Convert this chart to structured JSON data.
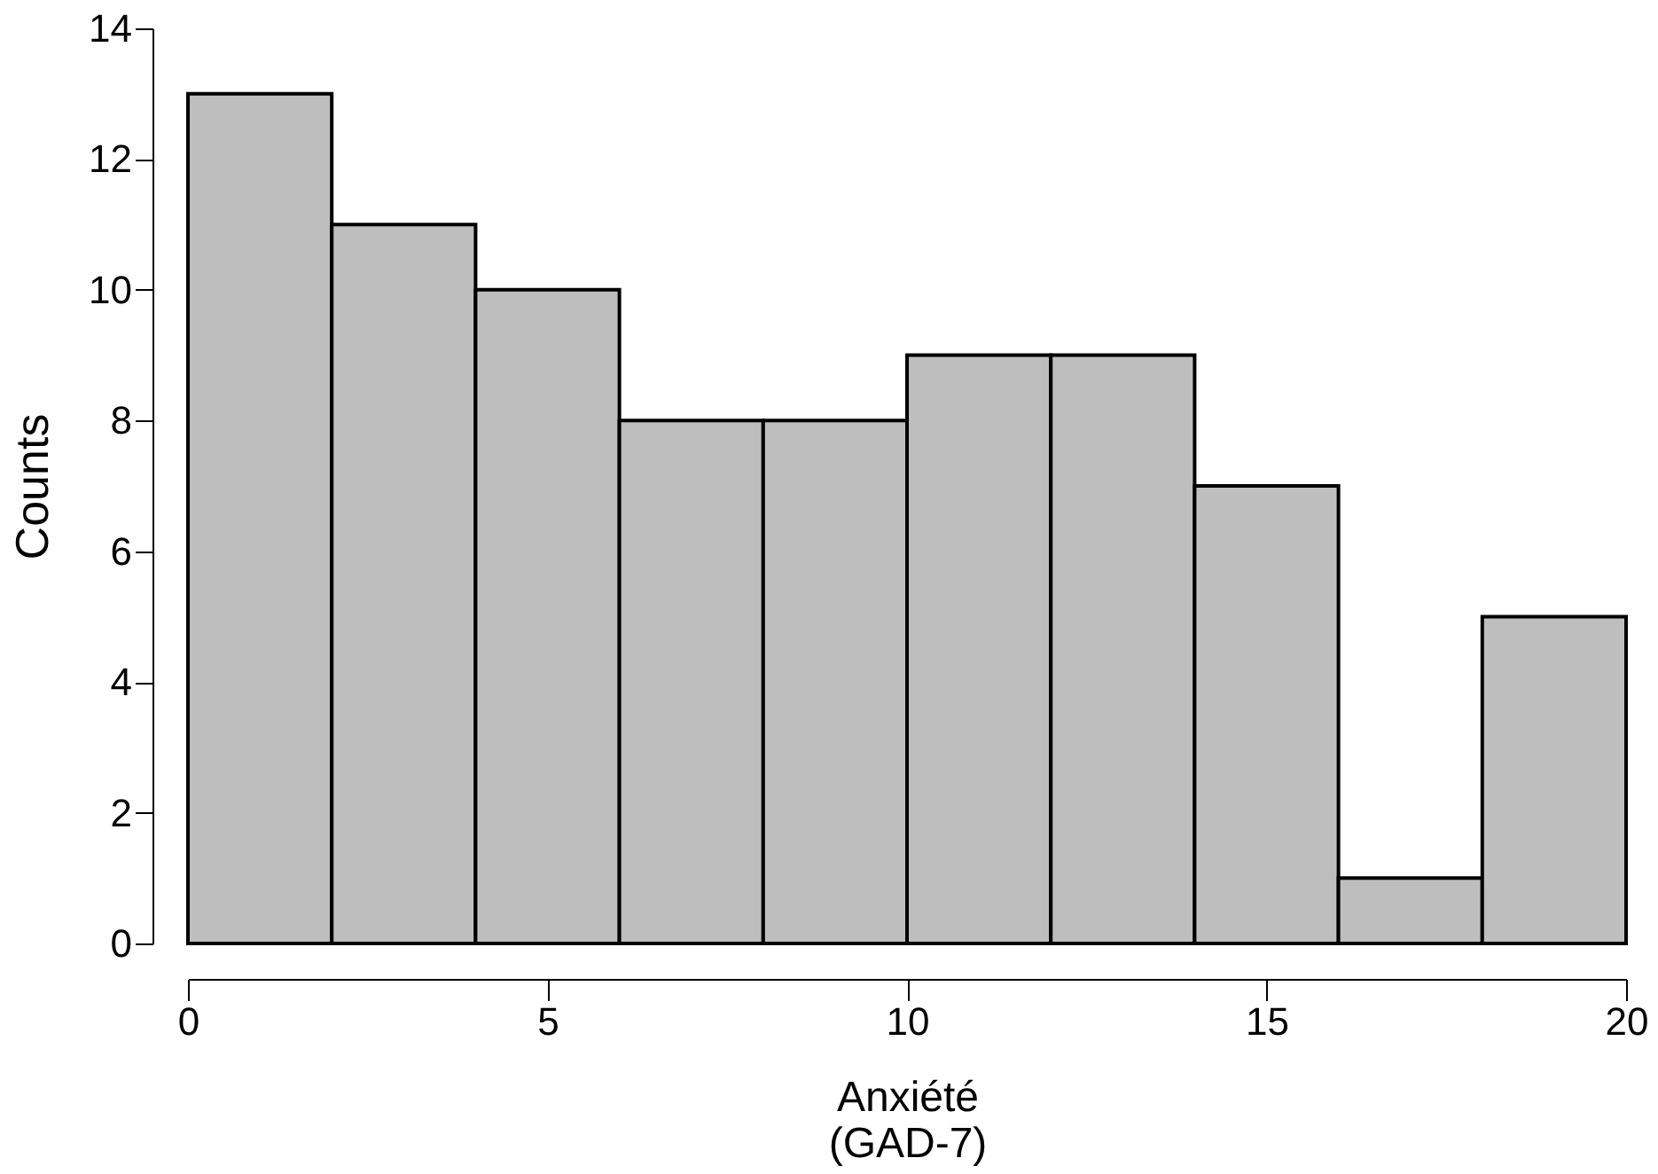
{
  "chart_data": {
    "type": "histogram",
    "xlabel": "Anxiété\n(GAD-7)",
    "ylabel": "Counts",
    "bins": [
      0,
      2,
      4,
      6,
      8,
      10,
      12,
      14,
      16,
      18,
      20
    ],
    "values": [
      13,
      11,
      10,
      8,
      8,
      9,
      9,
      7,
      1,
      5
    ],
    "color": "#bebebe",
    "xlim": [
      0,
      20
    ],
    "xticks": [
      0,
      5,
      10,
      15,
      20
    ],
    "ylim": [
      0,
      14
    ],
    "yticks": [
      0,
      2,
      4,
      6,
      8,
      10,
      12,
      14
    ],
    "grid": false
  }
}
